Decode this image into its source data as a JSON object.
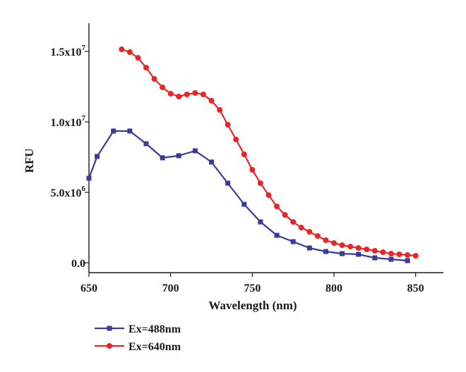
{
  "chart_data": {
    "type": "line",
    "xlabel": "Wavelength (nm)",
    "ylabel": "RFU",
    "xlim": [
      650,
      867
    ],
    "ylim": [
      -700000,
      17000000
    ],
    "x_ticks": [
      650,
      700,
      750,
      800,
      850
    ],
    "y_ticks": [
      {
        "value": 0,
        "mantissa": "0.0",
        "exp": ""
      },
      {
        "value": 5000000,
        "mantissa": "5.0x10",
        "exp": "6"
      },
      {
        "value": 10000000,
        "mantissa": "1.0x10",
        "exp": "7"
      },
      {
        "value": 15000000,
        "mantissa": "1.5x10",
        "exp": "7"
      }
    ],
    "grid": false,
    "legend_position": "bottom-left",
    "series": [
      {
        "name": "Ex=488nm",
        "color": "#3a3a9a",
        "marker": "square",
        "x": [
          650,
          655,
          665,
          675,
          685,
          695,
          705,
          715,
          725,
          735,
          745,
          755,
          765,
          775,
          785,
          795,
          805,
          815,
          825,
          835,
          845
        ],
        "y": [
          6000000,
          7550000,
          9350000,
          9350000,
          8450000,
          7450000,
          7600000,
          7950000,
          7150000,
          5650000,
          4150000,
          2900000,
          1950000,
          1500000,
          1050000,
          800000,
          650000,
          600000,
          350000,
          250000,
          150000
        ]
      },
      {
        "name": "Ex=640nm",
        "color": "#e8262a",
        "marker": "circle",
        "x": [
          670,
          675,
          680,
          685,
          690,
          695,
          700,
          705,
          710,
          715,
          720,
          725,
          730,
          735,
          740,
          745,
          750,
          755,
          760,
          765,
          770,
          775,
          780,
          785,
          790,
          795,
          800,
          805,
          810,
          815,
          820,
          825,
          830,
          835,
          840,
          845,
          850
        ],
        "y": [
          15150000,
          14950000,
          14550000,
          13850000,
          13050000,
          12450000,
          12000000,
          11800000,
          11950000,
          12050000,
          11950000,
          11500000,
          10850000,
          9800000,
          8750000,
          7700000,
          6600000,
          5650000,
          4800000,
          4000000,
          3400000,
          2900000,
          2500000,
          2200000,
          1900000,
          1600000,
          1400000,
          1250000,
          1150000,
          1050000,
          950000,
          850000,
          750000,
          650000,
          600000,
          550000,
          500000
        ]
      }
    ]
  }
}
